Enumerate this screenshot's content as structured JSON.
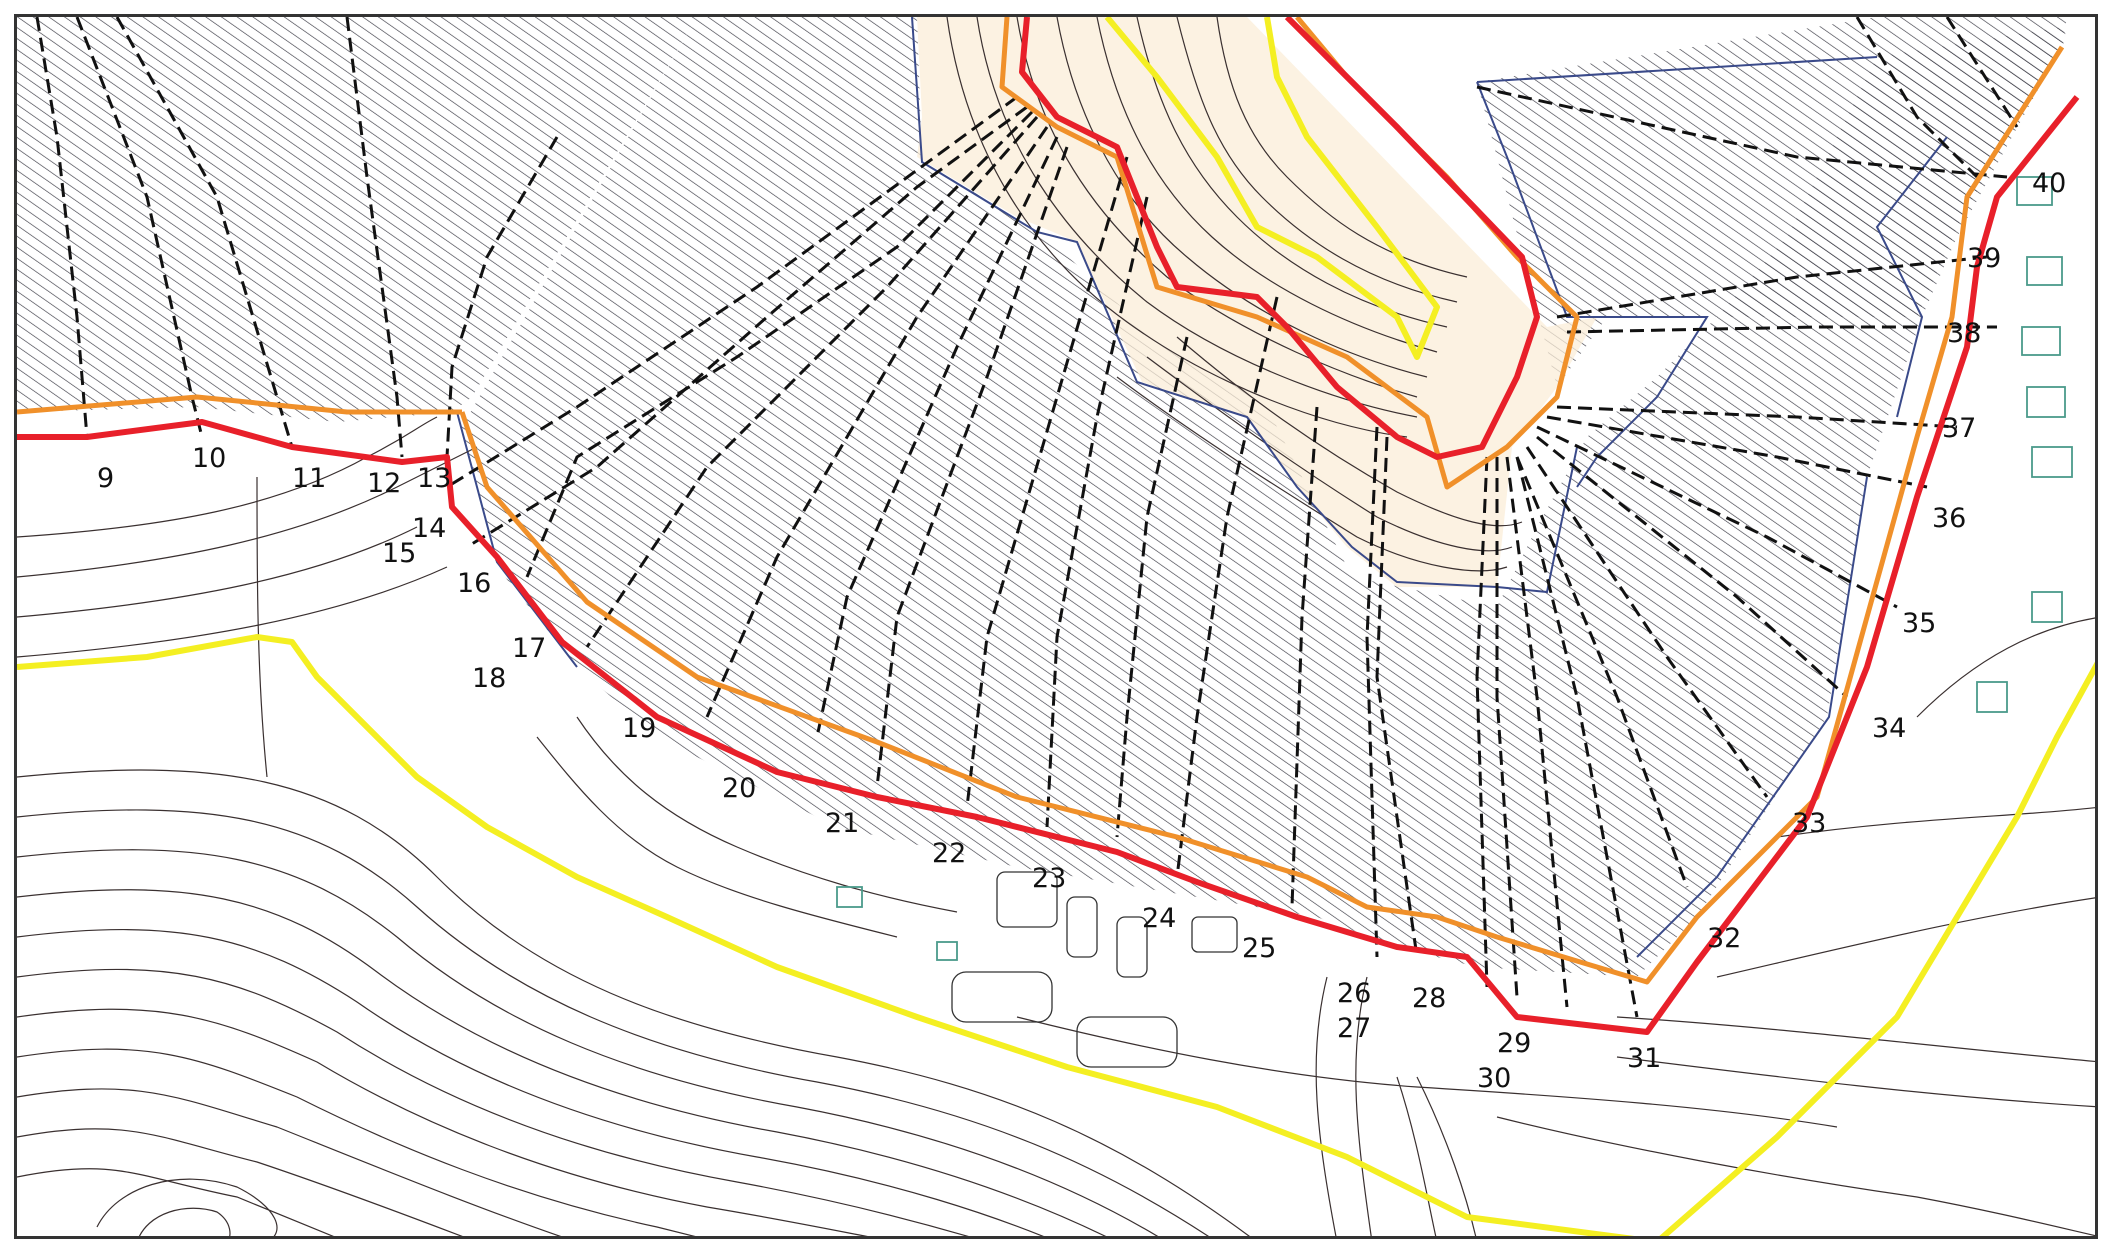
{
  "map": {
    "colors": {
      "boundary_red": "#e8202a",
      "offset_orange": "#f0902a",
      "zone_yellow": "#f4ef22",
      "slope_blue": "#3a4a8a",
      "section_line": "#111111",
      "contour": "#3a3030",
      "hatch": "#3c3c46",
      "steep_fill": "#fbeed8",
      "building": "#4a9a8a"
    },
    "section_labels": [
      "9",
      "10",
      "11",
      "12",
      "13",
      "14",
      "15",
      "16",
      "17",
      "18",
      "19",
      "20",
      "21",
      "22",
      "23",
      "24",
      "25",
      "26",
      "27",
      "28",
      "29",
      "30",
      "31",
      "32",
      "33",
      "34",
      "35",
      "36",
      "37",
      "38",
      "39",
      "40"
    ]
  }
}
